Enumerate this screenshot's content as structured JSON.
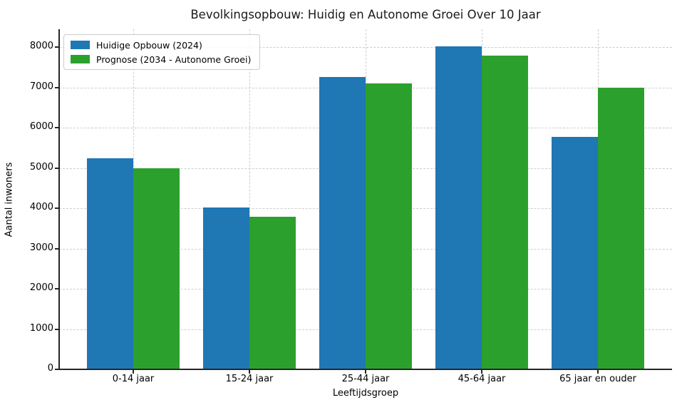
{
  "figure": {
    "background": "#ffffff"
  },
  "chart_data": {
    "type": "bar",
    "title": "Bevolkingsopbouw: Huidig en Autonome Groei Over 10 Jaar",
    "xlabel": "Leeftijdsgroep",
    "ylabel": "Aantal inwoners",
    "categories": [
      "0-14 jaar",
      "15-24 jaar",
      "25-44 jaar",
      "45-64 jaar",
      "65 jaar en ouder"
    ],
    "series": [
      {
        "name": "Huidige Opbouw (2024)",
        "color": "#1f77b4",
        "values": [
          5250,
          4030,
          7270,
          8030,
          5780
        ]
      },
      {
        "name": "Prognose (2034 - Autonome Groei)",
        "color": "#2ca02c",
        "values": [
          5000,
          3800,
          7100,
          7800,
          7000
        ]
      }
    ],
    "ylim": [
      0,
      8450
    ],
    "yticks": [
      0,
      1000,
      2000,
      3000,
      4000,
      5000,
      6000,
      7000,
      8000
    ],
    "grid": true,
    "grid_style": "dashed",
    "legend_position": "upper left",
    "bar_width_fraction": 0.4,
    "colors": {
      "grid": "#cdcdcd",
      "spine": "#262626",
      "text": "#000000"
    }
  }
}
